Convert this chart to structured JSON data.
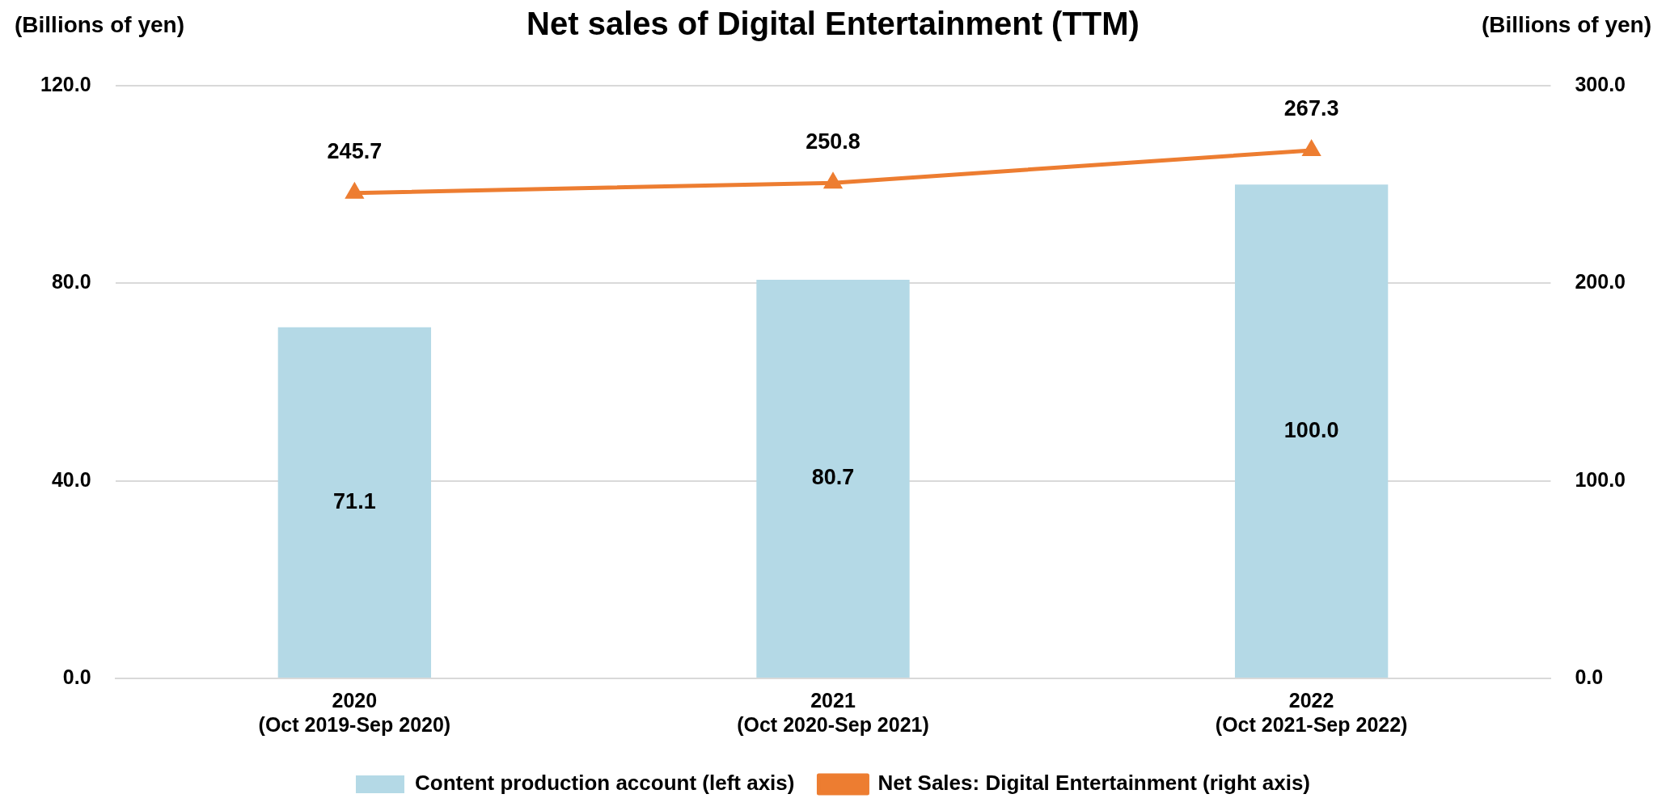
{
  "chart_data": {
    "type": "bar",
    "title": "Net sales of Digital Entertainment (TTM)",
    "ylabel": "(Billions of yen)",
    "y2label": "(Billions of yen)",
    "categories": [
      "2020\n(Oct 2019-Sep 2020)",
      "2021\n(Oct 2020-Sep 2021)",
      "2022\n(Oct 2021-Sep 2022)"
    ],
    "series": [
      {
        "name": "Content production account (left axis)",
        "color": "#b4d9e6",
        "values": [
          71.1,
          80.7,
          100.0
        ],
        "value_labels": [
          "71.1",
          "80.7",
          "100.0"
        ]
      },
      {
        "name": "Net Sales: Digital Entertainment (right axis)",
        "type": "line",
        "axis": "y2",
        "color": "#ed7d31",
        "marker": "triangle",
        "values": [
          245.7,
          250.8,
          267.3
        ],
        "value_labels": [
          "245.7",
          "250.8",
          "267.3"
        ]
      }
    ],
    "ylim": [
      0,
      120
    ],
    "yticks": [
      {
        "value": 0,
        "label": "0.0"
      },
      {
        "value": 40,
        "label": "40.0"
      },
      {
        "value": 80,
        "label": "80.0"
      },
      {
        "value": 120,
        "label": "120.0"
      }
    ],
    "y2lim": [
      0,
      300
    ],
    "y2ticks": [
      {
        "value": 0,
        "label": "0.0"
      },
      {
        "value": 100,
        "label": "100.0"
      },
      {
        "value": 200,
        "label": "200.0"
      },
      {
        "value": 300,
        "label": "300.0"
      }
    ],
    "grid": "y",
    "legend": "bottom"
  }
}
